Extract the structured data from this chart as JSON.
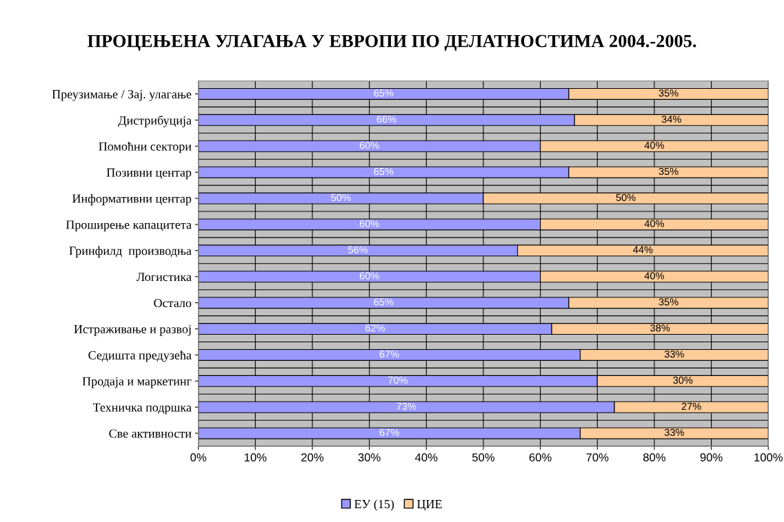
{
  "chart_data": {
    "type": "bar",
    "orientation": "horizontal",
    "stacked": true,
    "title": "ПРОЦЕЊЕНА УЛАГАЊА У ЕВРОПИ ПО ДЕЛАТНОСТИМА 2004.-2005.",
    "categories": [
      "Преузимање / Зај. улагање",
      "Дистрибуција",
      "Помоћни сектори",
      "Позивни центар",
      "Информативни центар",
      "Проширење капацитета",
      "Гринфилд  производња",
      "Логистика",
      "Остало",
      "Истраживање и развој",
      "Седишта предузећа",
      "Продаја и маркетинг",
      "Техничка подршка",
      "Све активности"
    ],
    "series": [
      {
        "name": "ЕУ (15)",
        "color": "#9999ff",
        "values": [
          65,
          66,
          60,
          65,
          50,
          60,
          56,
          60,
          65,
          62,
          67,
          70,
          73,
          67
        ],
        "value_labels": [
          "65%",
          "66%",
          "60%",
          "65%",
          "50%",
          "60%",
          "56%",
          "60%",
          "65%",
          "62%",
          "67%",
          "70%",
          "73%",
          "67%"
        ]
      },
      {
        "name": "ЦИЕ",
        "color": "#ffcc99",
        "values": [
          35,
          34,
          40,
          35,
          50,
          40,
          44,
          40,
          35,
          38,
          33,
          30,
          27,
          33
        ],
        "value_labels": [
          "35%",
          "34%",
          "40%",
          "35%",
          "50%",
          "40%",
          "44%",
          "40%",
          "35%",
          "38%",
          "33%",
          "30%",
          "27%",
          "33%"
        ]
      }
    ],
    "xlim": [
      0,
      100
    ],
    "xticks": [
      {
        "value": 0,
        "label": "0%"
      },
      {
        "value": 10,
        "label": "10%"
      },
      {
        "value": 20,
        "label": "20%"
      },
      {
        "value": 30,
        "label": "30%"
      },
      {
        "value": 40,
        "label": "40%"
      },
      {
        "value": 50,
        "label": "50%"
      },
      {
        "value": 60,
        "label": "60%"
      },
      {
        "value": 70,
        "label": "70%"
      },
      {
        "value": 80,
        "label": "80%"
      },
      {
        "value": 90,
        "label": "90%"
      },
      {
        "value": 100,
        "label": "100%"
      }
    ],
    "grid": true,
    "legend": "bottom"
  }
}
